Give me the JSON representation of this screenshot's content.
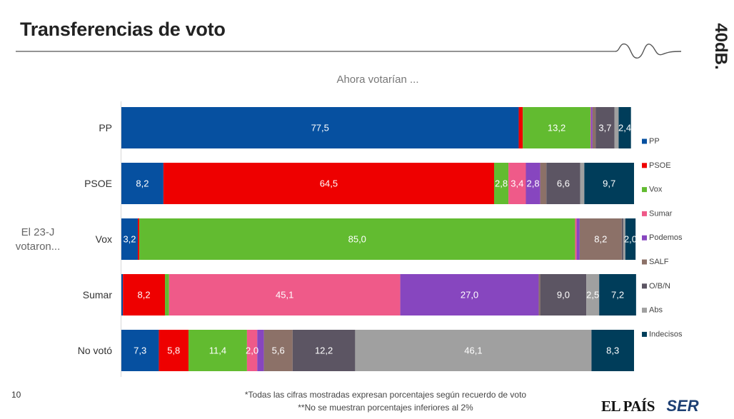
{
  "header": {
    "title": "Transferencias de voto",
    "brand": "40dB."
  },
  "chart_data": {
    "type": "bar",
    "orientation": "horizontal",
    "stacked": true,
    "subtitle": "Ahora votarían ...",
    "y_group_label": "El 23-J votaron...",
    "xlim": [
      0,
      100
    ],
    "legend_position": "right",
    "categories": [
      "PP",
      "PSOE",
      "Vox",
      "Sumar",
      "No votó"
    ],
    "series": [
      {
        "name": "PP",
        "color": "#0650a0",
        "values": [
          77.5,
          8.2,
          3.2,
          0.3,
          7.3
        ]
      },
      {
        "name": "PSOE",
        "color": "#ee0000",
        "values": [
          0.8,
          64.5,
          0.3,
          8.2,
          5.8
        ]
      },
      {
        "name": "Vox",
        "color": "#62bb30",
        "values": [
          13.2,
          2.8,
          85.0,
          0.8,
          11.4
        ]
      },
      {
        "name": "Sumar",
        "color": "#ef5a89",
        "values": [
          0.1,
          3.4,
          0.3,
          45.1,
          2.0
        ]
      },
      {
        "name": "Podemos",
        "color": "#8746bf",
        "values": [
          0.3,
          2.8,
          0.6,
          27.0,
          1.3
        ]
      },
      {
        "name": "SALF",
        "color": "#8c7168",
        "values": [
          0.6,
          1.2,
          8.2,
          0.3,
          5.6
        ]
      },
      {
        "name": "O/B/N",
        "color": "#5c5563",
        "values": [
          3.7,
          6.6,
          0.3,
          9.0,
          12.2
        ]
      },
      {
        "name": "Abs",
        "color": "#a0a0a0",
        "values": [
          0.8,
          0.8,
          0.4,
          2.5,
          46.1
        ]
      },
      {
        "name": "Indecisos",
        "color": "#003d5a",
        "values": [
          2.4,
          9.7,
          2.0,
          7.2,
          8.3
        ]
      }
    ],
    "labels_shown_min": 2
  },
  "footer": {
    "page_number": "10",
    "footnote_1": "*Todas las cifras mostradas expresan porcentajes según recuerdo de voto",
    "footnote_2": "**No se muestran porcentajes inferiores al 2%",
    "logo_1": "EL PAÍS",
    "logo_2": "SER"
  }
}
